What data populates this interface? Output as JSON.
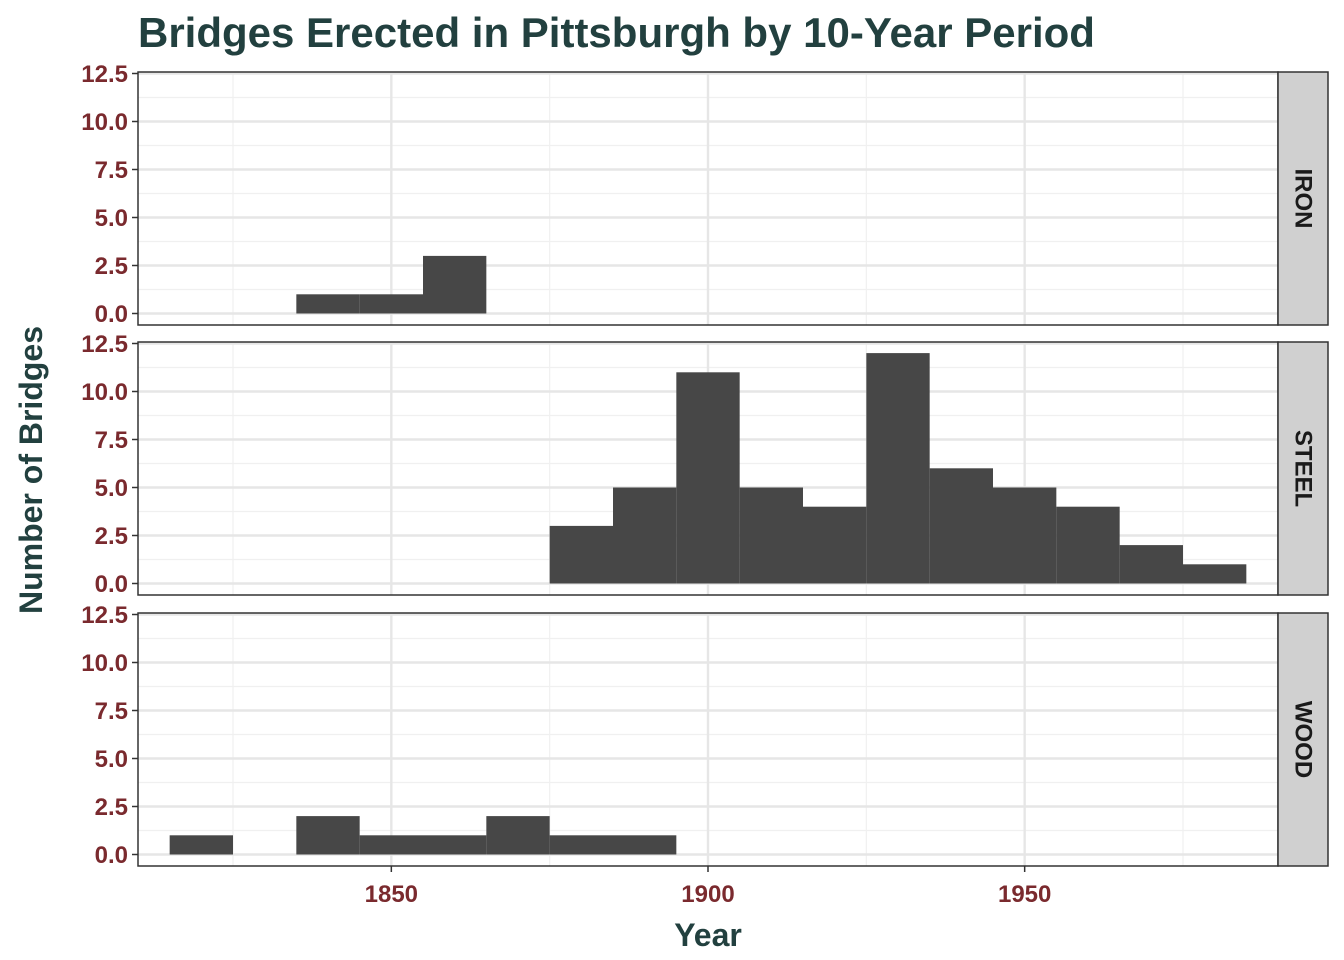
{
  "chart_data": {
    "type": "bar",
    "subtype": "faceted-histogram",
    "title": "Bridges Erected in Pittsburgh by 10-Year Period",
    "xlabel": "Year",
    "ylabel": "Number of Bridges",
    "bin_width": 10,
    "xlim": [
      1810,
      1990
    ],
    "ylim": [
      0,
      12.5
    ],
    "x_ticks": [
      1850,
      1900,
      1950
    ],
    "x_tick_labels": [
      "1850",
      "1900",
      "1950"
    ],
    "y_ticks": [
      0,
      2.5,
      5,
      7.5,
      10,
      12.5
    ],
    "y_tick_labels": [
      "0.0",
      "2.5",
      "5.0",
      "7.5",
      "10.0",
      "12.5"
    ],
    "grid": true,
    "facets": [
      {
        "name": "IRON",
        "bins": [
          {
            "start": 1835,
            "end": 1845,
            "count": 1
          },
          {
            "start": 1845,
            "end": 1855,
            "count": 1
          },
          {
            "start": 1855,
            "end": 1865,
            "count": 3
          }
        ]
      },
      {
        "name": "STEEL",
        "bins": [
          {
            "start": 1875,
            "end": 1885,
            "count": 3
          },
          {
            "start": 1885,
            "end": 1895,
            "count": 5
          },
          {
            "start": 1895,
            "end": 1905,
            "count": 11
          },
          {
            "start": 1905,
            "end": 1915,
            "count": 5
          },
          {
            "start": 1915,
            "end": 1925,
            "count": 4
          },
          {
            "start": 1925,
            "end": 1935,
            "count": 12
          },
          {
            "start": 1935,
            "end": 1945,
            "count": 6
          },
          {
            "start": 1945,
            "end": 1955,
            "count": 5
          },
          {
            "start": 1955,
            "end": 1965,
            "count": 4
          },
          {
            "start": 1965,
            "end": 1975,
            "count": 2
          },
          {
            "start": 1975,
            "end": 1985,
            "count": 1
          }
        ]
      },
      {
        "name": "WOOD",
        "bins": [
          {
            "start": 1815,
            "end": 1825,
            "count": 1
          },
          {
            "start": 1835,
            "end": 1845,
            "count": 2
          },
          {
            "start": 1845,
            "end": 1855,
            "count": 1
          },
          {
            "start": 1855,
            "end": 1865,
            "count": 1
          },
          {
            "start": 1865,
            "end": 1875,
            "count": 2
          },
          {
            "start": 1875,
            "end": 1885,
            "count": 1
          },
          {
            "start": 1885,
            "end": 1895,
            "count": 1
          }
        ]
      }
    ],
    "colors": {
      "bar": "#474747",
      "title": "#22403f",
      "tick_label": "#7a2a2e",
      "strip_fill": "#d0d0d0",
      "panel_border": "#333333",
      "grid_major": "#e6e6e6",
      "grid_minor": "#f0f0f0"
    }
  }
}
